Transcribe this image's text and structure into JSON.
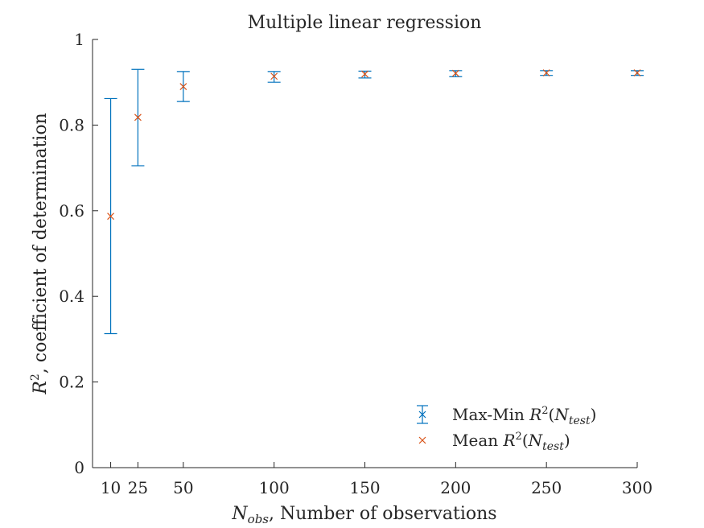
{
  "chart_data": {
    "type": "scatter",
    "title": "Multiple linear regression",
    "xlabel": {
      "symbol": "N",
      "subscript": "obs",
      "text": ", Number of observations"
    },
    "ylabel": {
      "symbol": "R",
      "superscript": "2",
      "text": ", coefficient of determination"
    },
    "xlim": [
      0,
      300
    ],
    "ylim": [
      0,
      1
    ],
    "xticks": [
      10,
      25,
      50,
      100,
      150,
      200,
      250,
      300
    ],
    "xtick_labels": [
      "10",
      "25",
      "50",
      "100",
      "150",
      "200",
      "250",
      "300"
    ],
    "yticks": [
      0,
      0.2,
      0.4,
      0.6,
      0.8,
      1
    ],
    "ytick_labels": [
      "0",
      "0.2",
      "0.4",
      "0.6",
      "0.8",
      "1"
    ],
    "grid": false,
    "legend_position": "bottom-right",
    "series": [
      {
        "name": "Max-Min",
        "name_math": {
          "symbol": "R",
          "superscript": "2",
          "open": "(N",
          "subscript": "test",
          "close": ")"
        },
        "kind": "errorbar",
        "color": "#0072BD",
        "x": [
          10,
          25,
          50,
          100,
          150,
          200,
          250,
          300
        ],
        "min": [
          0.313,
          0.705,
          0.855,
          0.9,
          0.91,
          0.913,
          0.916,
          0.916
        ],
        "max": [
          0.862,
          0.93,
          0.925,
          0.925,
          0.926,
          0.927,
          0.927,
          0.927
        ]
      },
      {
        "name": "Mean",
        "name_math": {
          "symbol": "R",
          "superscript": "2",
          "open": "(N",
          "subscript": "test",
          "close": ")"
        },
        "kind": "marker-x",
        "color": "#D95319",
        "x": [
          10,
          25,
          50,
          100,
          150,
          200,
          250,
          300
        ],
        "y": [
          0.587,
          0.818,
          0.89,
          0.914,
          0.919,
          0.921,
          0.922,
          0.922
        ]
      }
    ]
  }
}
